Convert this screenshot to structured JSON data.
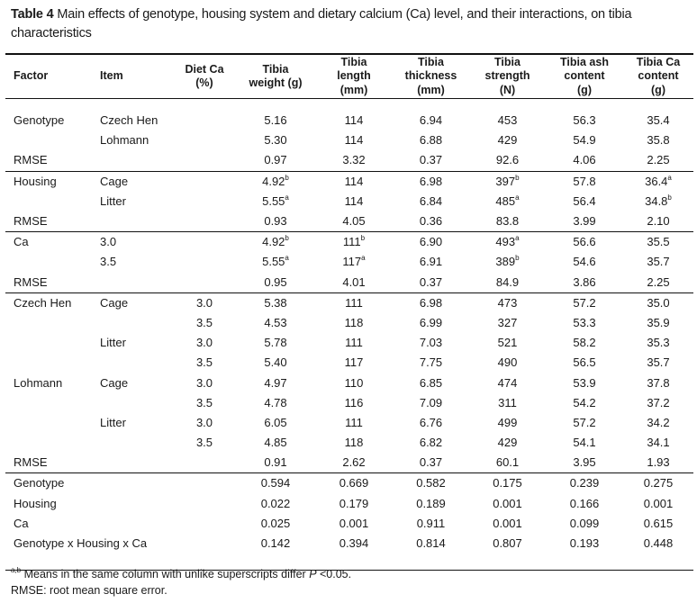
{
  "caption": {
    "label": "Table 4",
    "text": " Main effects of genotype, housing system and dietary calcium (Ca) level, and their interactions, on tibia characteristics"
  },
  "headers": [
    [
      "Factor"
    ],
    [
      "Item"
    ],
    [
      "Diet Ca",
      "(%)"
    ],
    [
      "Tibia",
      "weight (g)"
    ],
    [
      "Tibia",
      "length",
      "(mm)"
    ],
    [
      "Tibia",
      "thickness",
      "(mm)"
    ],
    [
      "Tibia",
      "strength",
      "(N)"
    ],
    [
      "Tibia ash",
      "content",
      "(g)"
    ],
    [
      "Tibia Ca",
      "content",
      "(g)"
    ]
  ],
  "rows": [
    {
      "group": "genotype",
      "cells": [
        {
          "t": "Genotype"
        },
        {
          "t": "Czech Hen"
        },
        {
          "t": ""
        },
        {
          "t": "5.16"
        },
        {
          "t": "114"
        },
        {
          "t": "6.94"
        },
        {
          "t": "453"
        },
        {
          "t": "56.3"
        },
        {
          "t": "35.4"
        }
      ]
    },
    {
      "group": "genotype",
      "cells": [
        {
          "t": ""
        },
        {
          "t": "Lohmann"
        },
        {
          "t": ""
        },
        {
          "t": "5.30"
        },
        {
          "t": "114"
        },
        {
          "t": "6.88"
        },
        {
          "t": "429"
        },
        {
          "t": "54.9"
        },
        {
          "t": "35.8"
        }
      ]
    },
    {
      "group": "genotype",
      "cells": [
        {
          "t": "RMSE"
        },
        {
          "t": ""
        },
        {
          "t": ""
        },
        {
          "t": "0.97"
        },
        {
          "t": "3.32"
        },
        {
          "t": "0.37"
        },
        {
          "t": "92.6"
        },
        {
          "t": "4.06"
        },
        {
          "t": "2.25"
        }
      ]
    },
    {
      "group": "housing",
      "sep": true,
      "cells": [
        {
          "t": "Housing"
        },
        {
          "t": "Cage"
        },
        {
          "t": ""
        },
        {
          "t": "4.92",
          "s": "b"
        },
        {
          "t": "114"
        },
        {
          "t": "6.98"
        },
        {
          "t": "397",
          "s": "b"
        },
        {
          "t": "57.8"
        },
        {
          "t": "36.4",
          "s": "a"
        }
      ]
    },
    {
      "group": "housing",
      "cells": [
        {
          "t": ""
        },
        {
          "t": "Litter"
        },
        {
          "t": ""
        },
        {
          "t": "5.55",
          "s": "a"
        },
        {
          "t": "114"
        },
        {
          "t": "6.84"
        },
        {
          "t": "485",
          "s": "a"
        },
        {
          "t": "56.4"
        },
        {
          "t": "34.8",
          "s": "b"
        }
      ]
    },
    {
      "group": "housing",
      "cells": [
        {
          "t": "RMSE"
        },
        {
          "t": ""
        },
        {
          "t": ""
        },
        {
          "t": "0.93"
        },
        {
          "t": "4.05"
        },
        {
          "t": "0.36"
        },
        {
          "t": "83.8"
        },
        {
          "t": "3.99"
        },
        {
          "t": "2.10"
        }
      ]
    },
    {
      "group": "ca",
      "sep": true,
      "cells": [
        {
          "t": "Ca"
        },
        {
          "t": "3.0"
        },
        {
          "t": ""
        },
        {
          "t": "4.92",
          "s": "b"
        },
        {
          "t": "111",
          "s": "b"
        },
        {
          "t": "6.90"
        },
        {
          "t": "493",
          "s": "a"
        },
        {
          "t": "56.6"
        },
        {
          "t": "35.5"
        }
      ]
    },
    {
      "group": "ca",
      "cells": [
        {
          "t": ""
        },
        {
          "t": "3.5"
        },
        {
          "t": ""
        },
        {
          "t": "5.55",
          "s": "a"
        },
        {
          "t": "117",
          "s": "a"
        },
        {
          "t": "6.91"
        },
        {
          "t": "389",
          "s": "b"
        },
        {
          "t": "54.6"
        },
        {
          "t": "35.7"
        }
      ]
    },
    {
      "group": "ca",
      "cells": [
        {
          "t": "RMSE"
        },
        {
          "t": ""
        },
        {
          "t": ""
        },
        {
          "t": "0.95"
        },
        {
          "t": "4.01"
        },
        {
          "t": "0.37"
        },
        {
          "t": "84.9"
        },
        {
          "t": "3.86"
        },
        {
          "t": "2.25"
        }
      ]
    },
    {
      "group": "interaction",
      "sep": true,
      "cells": [
        {
          "t": "Czech Hen"
        },
        {
          "t": "Cage"
        },
        {
          "t": "3.0"
        },
        {
          "t": "5.38"
        },
        {
          "t": "111"
        },
        {
          "t": "6.98"
        },
        {
          "t": "473"
        },
        {
          "t": "57.2"
        },
        {
          "t": "35.0"
        }
      ]
    },
    {
      "group": "interaction",
      "cells": [
        {
          "t": ""
        },
        {
          "t": ""
        },
        {
          "t": "3.5"
        },
        {
          "t": "4.53"
        },
        {
          "t": "118"
        },
        {
          "t": "6.99"
        },
        {
          "t": "327"
        },
        {
          "t": "53.3"
        },
        {
          "t": "35.9"
        }
      ]
    },
    {
      "group": "interaction",
      "cells": [
        {
          "t": ""
        },
        {
          "t": "Litter"
        },
        {
          "t": "3.0"
        },
        {
          "t": "5.78"
        },
        {
          "t": "111"
        },
        {
          "t": "7.03"
        },
        {
          "t": "521"
        },
        {
          "t": "58.2"
        },
        {
          "t": "35.3"
        }
      ]
    },
    {
      "group": "interaction",
      "cells": [
        {
          "t": ""
        },
        {
          "t": ""
        },
        {
          "t": "3.5"
        },
        {
          "t": "5.40"
        },
        {
          "t": "117"
        },
        {
          "t": "7.75"
        },
        {
          "t": "490"
        },
        {
          "t": "56.5"
        },
        {
          "t": "35.7"
        }
      ]
    },
    {
      "group": "interaction",
      "cells": [
        {
          "t": "Lohmann"
        },
        {
          "t": "Cage"
        },
        {
          "t": "3.0"
        },
        {
          "t": "4.97"
        },
        {
          "t": "110"
        },
        {
          "t": "6.85"
        },
        {
          "t": "474"
        },
        {
          "t": "53.9"
        },
        {
          "t": "37.8"
        }
      ]
    },
    {
      "group": "interaction",
      "cells": [
        {
          "t": ""
        },
        {
          "t": ""
        },
        {
          "t": "3.5"
        },
        {
          "t": "4.78"
        },
        {
          "t": "116"
        },
        {
          "t": "7.09"
        },
        {
          "t": "311"
        },
        {
          "t": "54.2"
        },
        {
          "t": "37.2"
        }
      ]
    },
    {
      "group": "interaction",
      "cells": [
        {
          "t": ""
        },
        {
          "t": "Litter"
        },
        {
          "t": "3.0"
        },
        {
          "t": "6.05"
        },
        {
          "t": "111"
        },
        {
          "t": "6.76"
        },
        {
          "t": "499"
        },
        {
          "t": "57.2"
        },
        {
          "t": "34.2"
        }
      ]
    },
    {
      "group": "interaction",
      "cells": [
        {
          "t": ""
        },
        {
          "t": ""
        },
        {
          "t": "3.5"
        },
        {
          "t": "4.85"
        },
        {
          "t": "118"
        },
        {
          "t": "6.82"
        },
        {
          "t": "429"
        },
        {
          "t": "54.1"
        },
        {
          "t": "34.1"
        }
      ]
    },
    {
      "group": "interaction",
      "cells": [
        {
          "t": "RMSE"
        },
        {
          "t": ""
        },
        {
          "t": ""
        },
        {
          "t": "0.91"
        },
        {
          "t": "2.62"
        },
        {
          "t": "0.37"
        },
        {
          "t": "60.1"
        },
        {
          "t": "3.95"
        },
        {
          "t": "1.93"
        }
      ]
    },
    {
      "group": "pvalues",
      "sep": true,
      "span": "Genotype",
      "cells": [
        {
          "t": "0.594"
        },
        {
          "t": "0.669"
        },
        {
          "t": "0.582"
        },
        {
          "t": "0.175"
        },
        {
          "t": "0.239"
        },
        {
          "t": "0.275"
        }
      ]
    },
    {
      "group": "pvalues",
      "span": "Housing",
      "cells": [
        {
          "t": "0.022"
        },
        {
          "t": "0.179"
        },
        {
          "t": "0.189"
        },
        {
          "t": "0.001"
        },
        {
          "t": "0.166"
        },
        {
          "t": "0.001"
        }
      ]
    },
    {
      "group": "pvalues",
      "span": "Ca",
      "cells": [
        {
          "t": "0.025"
        },
        {
          "t": "0.001"
        },
        {
          "t": "0.911"
        },
        {
          "t": "0.001"
        },
        {
          "t": "0.099"
        },
        {
          "t": "0.615"
        }
      ]
    },
    {
      "group": "pvalues",
      "span": "Genotype x Housing x Ca",
      "cells": [
        {
          "t": "0.142"
        },
        {
          "t": "0.394"
        },
        {
          "t": "0.814"
        },
        {
          "t": "0.807"
        },
        {
          "t": "0.193"
        },
        {
          "t": "0.448"
        }
      ]
    }
  ],
  "footnotes": {
    "sup": "a,b",
    "line1_a": " Means in the same column with unlike superscripts differ ",
    "line1_p": "P",
    "line1_b": " <0.05.",
    "line2": "RMSE: root mean square error."
  }
}
